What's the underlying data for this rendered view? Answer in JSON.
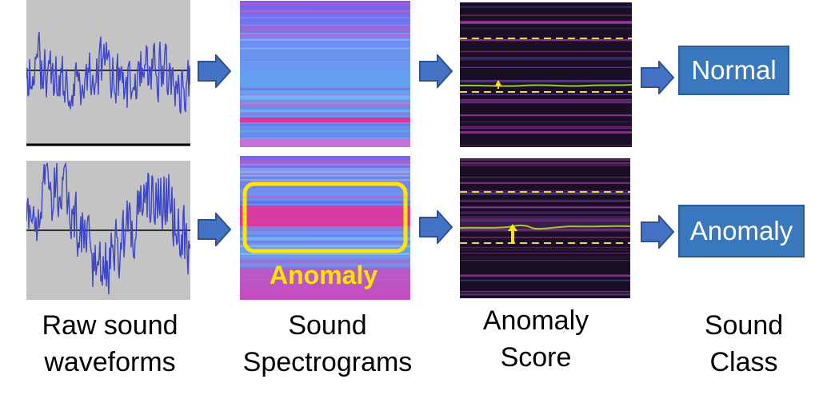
{
  "rows": [
    {
      "class_label": "Normal"
    },
    {
      "class_label": "Anomaly",
      "spectrogram_annotation": "Anomaly"
    }
  ],
  "captions": {
    "waveforms": [
      "Raw sound",
      "waveforms"
    ],
    "spectrograms": [
      "Sound",
      "Spectrograms"
    ],
    "score": [
      "Anomaly",
      "Score"
    ],
    "class": [
      "Sound",
      "Class"
    ]
  },
  "colors": {
    "box_fill": "#3a78bd",
    "arrow_fill": "#4472c4",
    "waveform_bg": "#c4c4c4",
    "waveform_line": "#3d45c9",
    "highlight": "#ffe600",
    "score_line": "#9acd32"
  },
  "icons": [
    "right-arrow-icon",
    "up-arrow-icon"
  ]
}
